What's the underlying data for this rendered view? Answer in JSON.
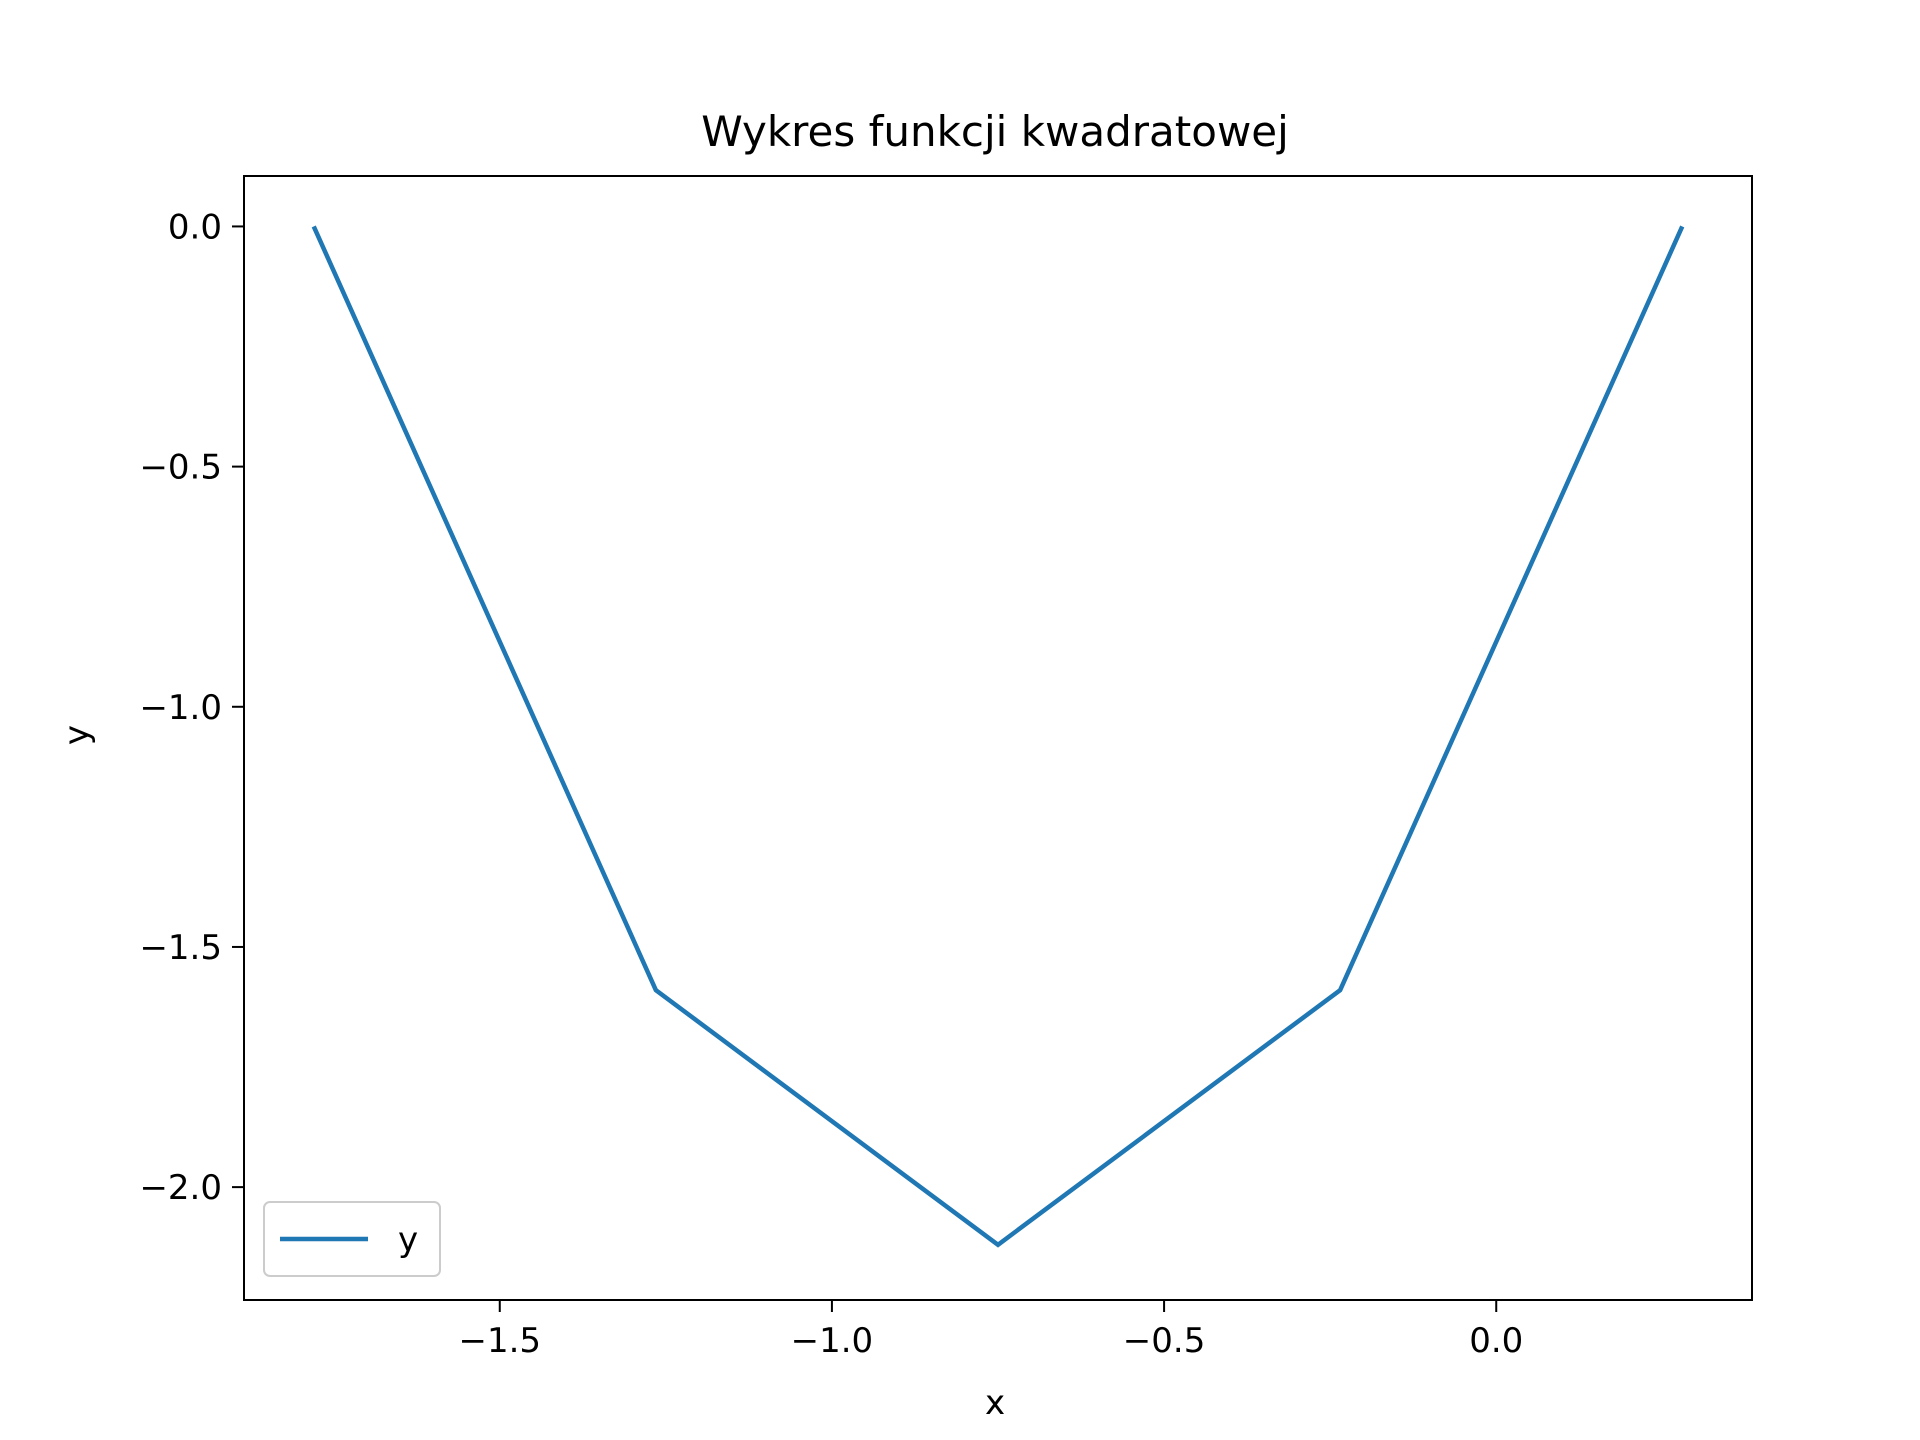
{
  "chart_data": {
    "type": "line",
    "title": "Wykres funkcji kwadratowej",
    "xlabel": "x",
    "ylabel": "y",
    "xlim": [
      -1.885,
      0.385
    ],
    "ylim": [
      -2.235,
      0.105
    ],
    "xticks": [
      -1.5,
      -1.0,
      -0.5,
      0.0
    ],
    "yticks": [
      0.0,
      -0.5,
      -1.0,
      -1.5,
      -2.0
    ],
    "xtick_labels": [
      "−1.5",
      "−1.0",
      "−0.5",
      "0.0"
    ],
    "ytick_labels": [
      "0.0",
      "−0.5",
      "−1.0",
      "−1.5",
      "−2.0"
    ],
    "grid": false,
    "legend": {
      "position": "lower-left"
    },
    "series": [
      {
        "name": "y",
        "color": "#1f77b4",
        "x": [
          -1.78,
          -1.265,
          -0.75,
          -0.235,
          0.28
        ],
        "y": [
          0.0,
          -1.59,
          -2.12,
          -1.59,
          0.0
        ]
      }
    ]
  }
}
